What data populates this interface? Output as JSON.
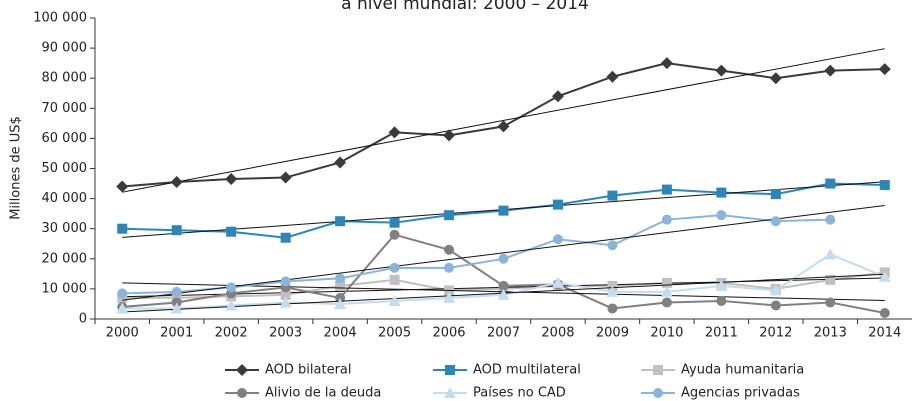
{
  "chart_data": {
    "type": "line",
    "title": "a nivel mundial: 2000 – 2014",
    "y_label": "Millones de US$",
    "categories": [
      "2000",
      "2001",
      "2002",
      "2003",
      "2004",
      "2005",
      "2006",
      "2007",
      "2008",
      "2009",
      "2010",
      "2011",
      "2012",
      "2013",
      "2014"
    ],
    "ylim": [
      0,
      100000
    ],
    "yticks": [
      0,
      {
        "value": 10000,
        "label": "10 000"
      },
      {
        "value": 20000,
        "label": "20 000"
      },
      {
        "value": 30000,
        "label": "30 000"
      },
      {
        "value": 40000,
        "label": "40 000"
      },
      {
        "value": 50000,
        "label": "50 000"
      },
      {
        "value": 60000,
        "label": "60 000"
      },
      {
        "value": 70000,
        "label": "70 000"
      },
      {
        "value": 80000,
        "label": "80 000"
      },
      {
        "value": 90000,
        "label": "90 000"
      },
      {
        "value": 100000,
        "label": "100 000"
      }
    ],
    "trendlines": true,
    "series": [
      {
        "name": "AOD bilateral",
        "color": "#3a3a3a",
        "marker": "diamond",
        "values": [
          44000,
          45500,
          46500,
          47000,
          52000,
          62000,
          61000,
          64000,
          74000,
          80500,
          85000,
          82500,
          80000,
          82500,
          83000
        ]
      },
      {
        "name": "AOD multilateral",
        "color": "#2e86b8",
        "marker": "square",
        "values": [
          30000,
          29500,
          29000,
          27000,
          32500,
          32000,
          34500,
          36000,
          38000,
          41000,
          43000,
          42000,
          41500,
          45000,
          44500
        ]
      },
      {
        "name": "Ayuda humanitaria",
        "color": "#c0c0c0",
        "marker": "square",
        "values": [
          7000,
          7000,
          7500,
          8000,
          11000,
          13000,
          9500,
          10000,
          11000,
          11000,
          12000,
          12000,
          10000,
          13000,
          15500
        ]
      },
      {
        "name": "Alivio de la deuda",
        "color": "#808080",
        "marker": "circle",
        "values": [
          4000,
          5500,
          8500,
          10500,
          7000,
          28000,
          23000,
          11000,
          11500,
          3500,
          5500,
          6000,
          4500,
          5500,
          2000
        ]
      },
      {
        "name": "Países no CAD",
        "color": "#c5dcec",
        "marker": "triangle",
        "values": [
          3500,
          3500,
          4500,
          5500,
          5000,
          6000,
          7000,
          8000,
          12000,
          9000,
          9000,
          11000,
          9500,
          21500,
          14000
        ]
      },
      {
        "name": "Agencias privadas",
        "color": "#8cb4d8",
        "marker": "circle",
        "values": [
          8500,
          9000,
          10500,
          12500,
          13500,
          17000,
          17000,
          20000,
          26500,
          24500,
          33000,
          34500,
          32500,
          33000,
          null
        ]
      }
    ]
  }
}
